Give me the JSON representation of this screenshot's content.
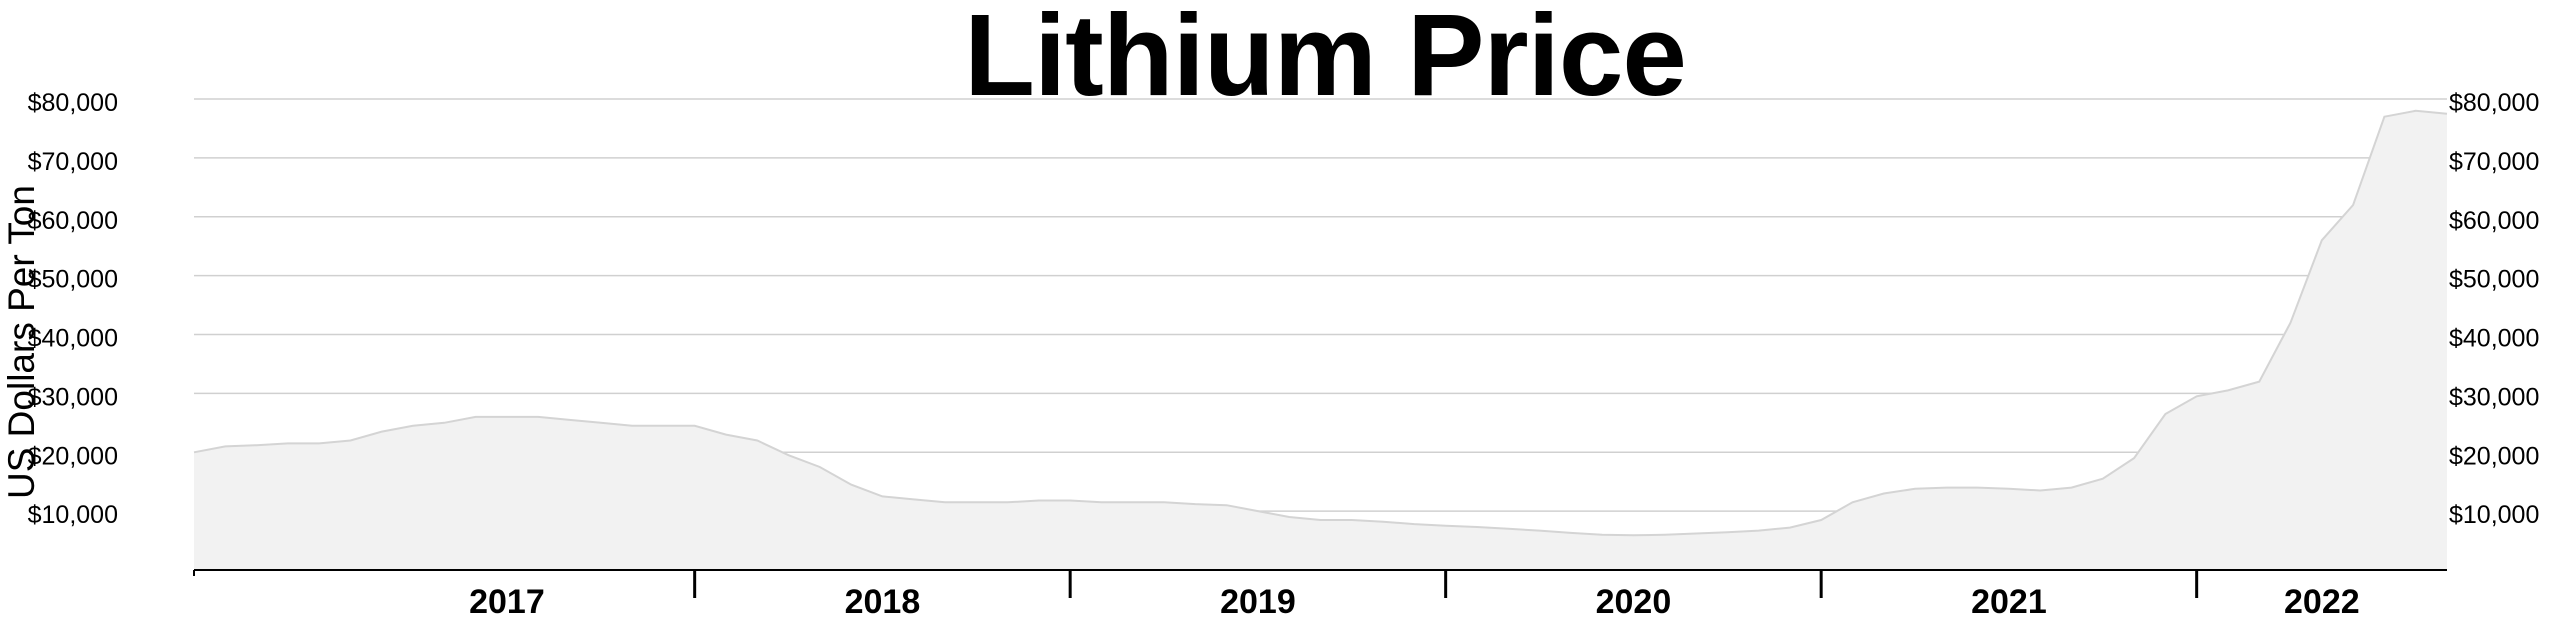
{
  "chart_data": {
    "type": "area",
    "title": "Lithium Price",
    "ylabel": "US Dollars Per Ton",
    "xlabel": "",
    "ylim": [
      0,
      80000
    ],
    "xlim": [
      "2016-09",
      "2022-09"
    ],
    "y_ticks": [
      10000,
      20000,
      30000,
      40000,
      50000,
      60000,
      70000,
      80000
    ],
    "y_tick_labels": [
      "$10,000",
      "$20,000",
      "$30,000",
      "$40,000",
      "$50,000",
      "$60,000",
      "$70,000",
      "$80,000"
    ],
    "x_tick_labels": [
      "2017",
      "2018",
      "2019",
      "2020",
      "2021",
      "2022"
    ],
    "y_axis_both_sides": true,
    "grid": true,
    "fill_color": "#f2f2f2",
    "line_color": "#d4d4d4",
    "x": [
      "2016-09",
      "2016-10",
      "2016-11",
      "2016-12",
      "2017-01",
      "2017-02",
      "2017-03",
      "2017-04",
      "2017-05",
      "2017-06",
      "2017-07",
      "2017-08",
      "2017-09",
      "2017-10",
      "2017-11",
      "2017-12",
      "2018-01",
      "2018-02",
      "2018-03",
      "2018-04",
      "2018-05",
      "2018-06",
      "2018-07",
      "2018-08",
      "2018-09",
      "2018-10",
      "2018-11",
      "2018-12",
      "2019-01",
      "2019-02",
      "2019-03",
      "2019-04",
      "2019-05",
      "2019-06",
      "2019-07",
      "2019-08",
      "2019-09",
      "2019-10",
      "2019-11",
      "2019-12",
      "2020-01",
      "2020-02",
      "2020-03",
      "2020-04",
      "2020-05",
      "2020-06",
      "2020-07",
      "2020-08",
      "2020-09",
      "2020-10",
      "2020-11",
      "2020-12",
      "2021-01",
      "2021-02",
      "2021-03",
      "2021-04",
      "2021-05",
      "2021-06",
      "2021-07",
      "2021-08",
      "2021-09",
      "2021-10",
      "2021-11",
      "2021-12",
      "2022-01",
      "2022-02",
      "2022-03",
      "2022-04",
      "2022-05",
      "2022-06",
      "2022-07",
      "2022-08",
      "2022-09"
    ],
    "values": [
      20000,
      21000,
      21200,
      21500,
      21500,
      22000,
      23500,
      24500,
      25000,
      26000,
      26000,
      26000,
      25500,
      25000,
      24500,
      24500,
      24500,
      23000,
      22000,
      19500,
      17500,
      14500,
      12500,
      12000,
      11500,
      11500,
      11500,
      11800,
      11800,
      11500,
      11500,
      11500,
      11200,
      11000,
      10000,
      9000,
      8500,
      8500,
      8200,
      7800,
      7500,
      7300,
      7000,
      6700,
      6300,
      6000,
      5900,
      6000,
      6200,
      6400,
      6700,
      7200,
      8500,
      11500,
      13000,
      13800,
      14000,
      14000,
      13800,
      13500,
      14000,
      15500,
      19000,
      26500,
      29500,
      30500,
      32000,
      42000,
      56000,
      62000,
      77000,
      78000,
      77500
    ]
  }
}
